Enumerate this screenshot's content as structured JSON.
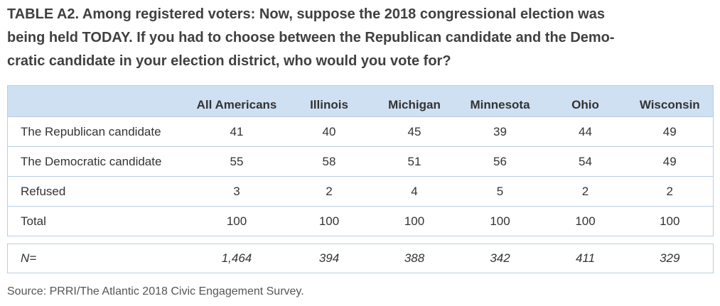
{
  "title": "TABLE A2. Among registered voters: Now, suppose the 2018 congressional election was being held TODAY. If you had to choose between the Republican candidate and the Demo-cratic candidate in your election district, who would you vote for?",
  "title_lines": [
    "TABLE A2. Among registered voters: Now, suppose the 2018 congressional election was",
    "being held TODAY. If you had to choose between the Republican candidate and the Demo-",
    "cratic candidate in your election district, who would you vote for?"
  ],
  "columns": [
    "",
    "All Americans",
    "Illinois",
    "Michigan",
    "Minnesota",
    "Ohio",
    "Wisconsin"
  ],
  "rows": [
    {
      "label": "The Republican candidate",
      "values": [
        "41",
        "40",
        "45",
        "39",
        "44",
        "49"
      ]
    },
    {
      "label": "The Democratic candidate",
      "values": [
        "55",
        "58",
        "51",
        "56",
        "54",
        "49"
      ]
    },
    {
      "label": "Refused",
      "values": [
        "3",
        "2",
        "4",
        "5",
        "2",
        "2"
      ]
    },
    {
      "label": "Total",
      "values": [
        "100",
        "100",
        "100",
        "100",
        "100",
        "100"
      ]
    }
  ],
  "n_row": {
    "label": "N=",
    "values": [
      "1,464",
      "394",
      "388",
      "342",
      "411",
      "329"
    ]
  },
  "source": "Source: PRRI/The Atlantic 2018 Civic Engagement Survey.",
  "colors": {
    "header_bg": "#cfe0f3",
    "border": "#b9cde3",
    "text": "#333333"
  }
}
